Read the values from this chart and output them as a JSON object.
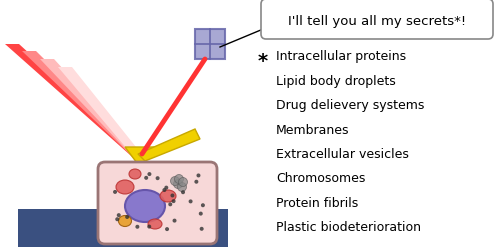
{
  "background_color": "#ffffff",
  "speech_bubble_text": "I'll tell you all my secrets*!",
  "asterisk": "*",
  "list_items": [
    "Intracellular proteins",
    "Lipid body droplets",
    "Drug delievery systems",
    "Membranes",
    "Extracellular vesicles",
    "Chromosomes",
    "Protein fibrils",
    "Plastic biodeterioration"
  ],
  "cell_body_color": "#f7d8d8",
  "cell_border_color": "#9a7575",
  "cell_nucleus_color": "#8878cc",
  "cell_nucleus_border": "#6655aa",
  "organelle_pink_color": "#e06060",
  "organelle_orange_color": "#e8a030",
  "dots_color": "#333333",
  "substrate_color": "#3a5080",
  "tip_color": "#f0d000",
  "tip_border_color": "#c8a800",
  "beam_colors": [
    "#ff4444",
    "#ff8888",
    "#ffbbbb",
    "#ffdddd"
  ],
  "reflected_color": "#ff3333",
  "detector_fill": "#9999cc",
  "detector_grid": "#6666aa",
  "bubble_edge": "#888888",
  "text_fontsize": 9.0,
  "speech_fontsize": 9.5,
  "asterisk_fontsize": 14
}
